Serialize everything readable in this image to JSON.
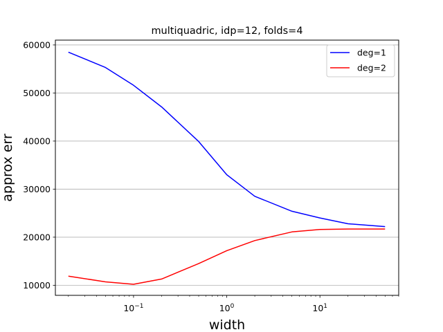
{
  "chart_data": {
    "type": "line",
    "title": "multiquadric, idp=12, folds=4",
    "xlabel": "width",
    "ylabel": "approx err",
    "x_scale": "log",
    "xlim": [
      0.0145,
      70
    ],
    "ylim": [
      7900,
      61000
    ],
    "grid": "y-major",
    "legend_position": "top-right",
    "x": [
      0.02,
      0.05,
      0.1,
      0.2,
      0.5,
      1,
      2,
      5,
      10,
      20,
      50
    ],
    "x_tick_labels": [
      {
        "value": 0.1,
        "base": "10",
        "exp": "−1"
      },
      {
        "value": 1,
        "base": "10",
        "exp": "0"
      },
      {
        "value": 10,
        "base": "10",
        "exp": "1"
      }
    ],
    "y_tick_labels": [
      {
        "value": 10000,
        "label": "10000"
      },
      {
        "value": 20000,
        "label": "20000"
      },
      {
        "value": 30000,
        "label": "30000"
      },
      {
        "value": 40000,
        "label": "40000"
      },
      {
        "value": 50000,
        "label": "50000"
      },
      {
        "value": 60000,
        "label": "60000"
      }
    ],
    "series": [
      {
        "name": "deg=1",
        "color": "#0000ff",
        "values": [
          58500,
          55300,
          51600,
          47100,
          39900,
          33000,
          28500,
          25400,
          24000,
          22800,
          22200
        ]
      },
      {
        "name": "deg=2",
        "color": "#ff0000",
        "values": [
          11900,
          10700,
          10200,
          11300,
          14500,
          17200,
          19300,
          21100,
          21600,
          21700,
          21700
        ]
      }
    ]
  }
}
